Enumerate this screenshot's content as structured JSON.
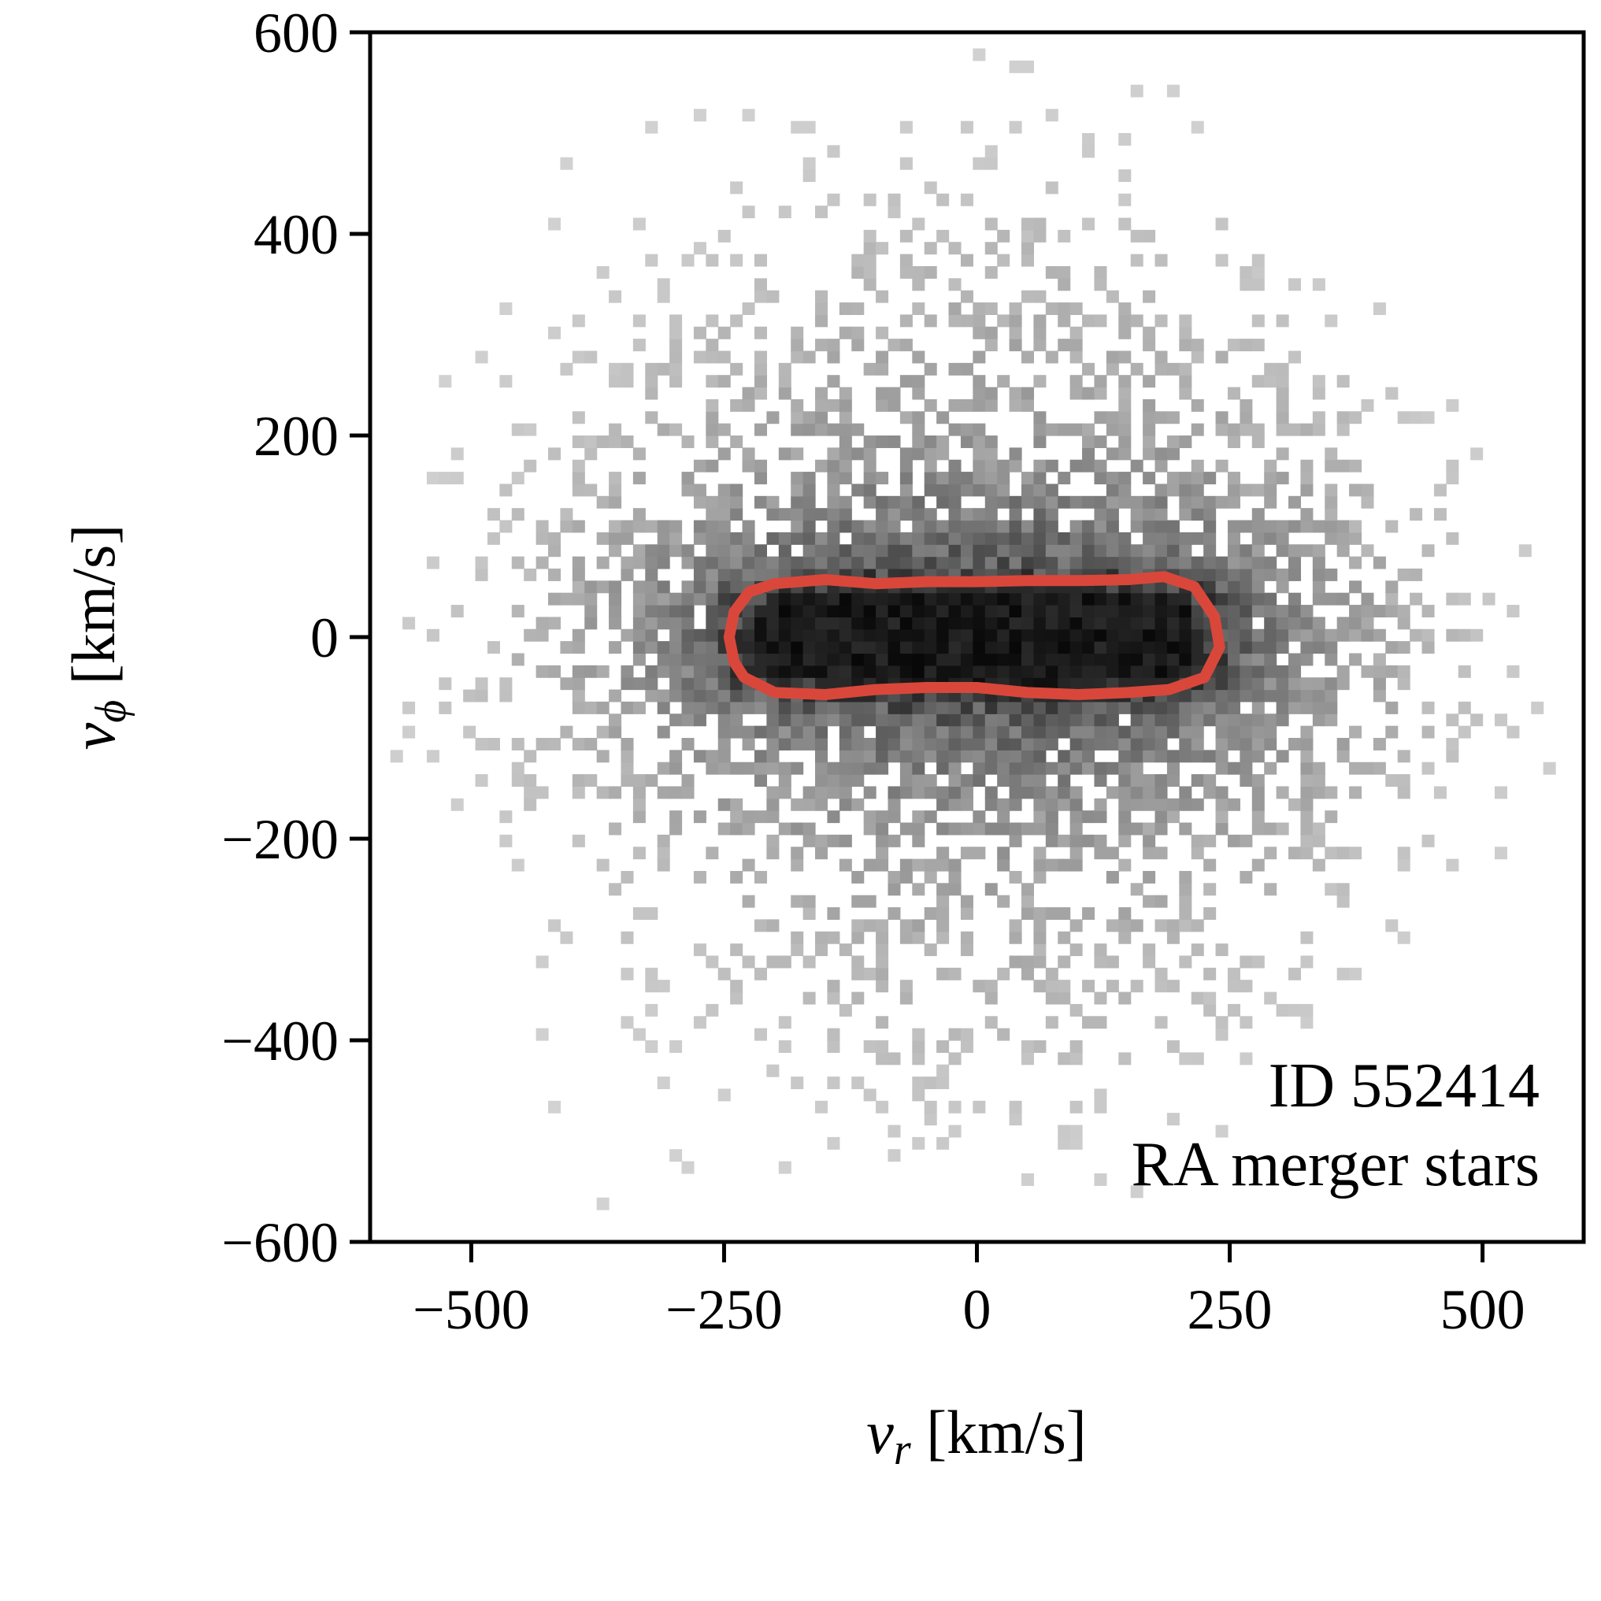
{
  "chart_data": {
    "type": "heatmap",
    "xlabel_var": "v",
    "xlabel_sub": "r",
    "xlabel_unit": " [km/s]",
    "ylabel_var": "v",
    "ylabel_sub": "ϕ",
    "ylabel_unit": " [km/s]",
    "xlim": [
      -600,
      600
    ],
    "ylim": [
      -600,
      600
    ],
    "xticks": [
      -500,
      -250,
      0,
      250,
      500
    ],
    "xtick_labels": [
      "−500",
      "−250",
      "0",
      "250",
      "500"
    ],
    "yticks": [
      -600,
      -400,
      -200,
      0,
      200,
      400,
      600
    ],
    "ytick_labels": [
      "−600",
      "−400",
      "−200",
      "0",
      "200",
      "400",
      "600"
    ],
    "grid": false,
    "colormap": "greys",
    "contour_color": "#d9473b",
    "contour": [
      [
        -245,
        0
      ],
      [
        -240,
        25
      ],
      [
        -225,
        45
      ],
      [
        -200,
        53
      ],
      [
        -150,
        57
      ],
      [
        -100,
        53
      ],
      [
        -50,
        55
      ],
      [
        0,
        55
      ],
      [
        50,
        56
      ],
      [
        100,
        56
      ],
      [
        150,
        57
      ],
      [
        185,
        60
      ],
      [
        215,
        50
      ],
      [
        235,
        20
      ],
      [
        240,
        -10
      ],
      [
        225,
        -40
      ],
      [
        190,
        -52
      ],
      [
        150,
        -55
      ],
      [
        100,
        -57
      ],
      [
        50,
        -55
      ],
      [
        0,
        -50
      ],
      [
        -50,
        -50
      ],
      [
        -100,
        -52
      ],
      [
        -150,
        -57
      ],
      [
        -200,
        -55
      ],
      [
        -230,
        -40
      ],
      [
        -240,
        -25
      ]
    ],
    "annotations": [
      "ID 552414",
      "RA merger stars"
    ]
  }
}
